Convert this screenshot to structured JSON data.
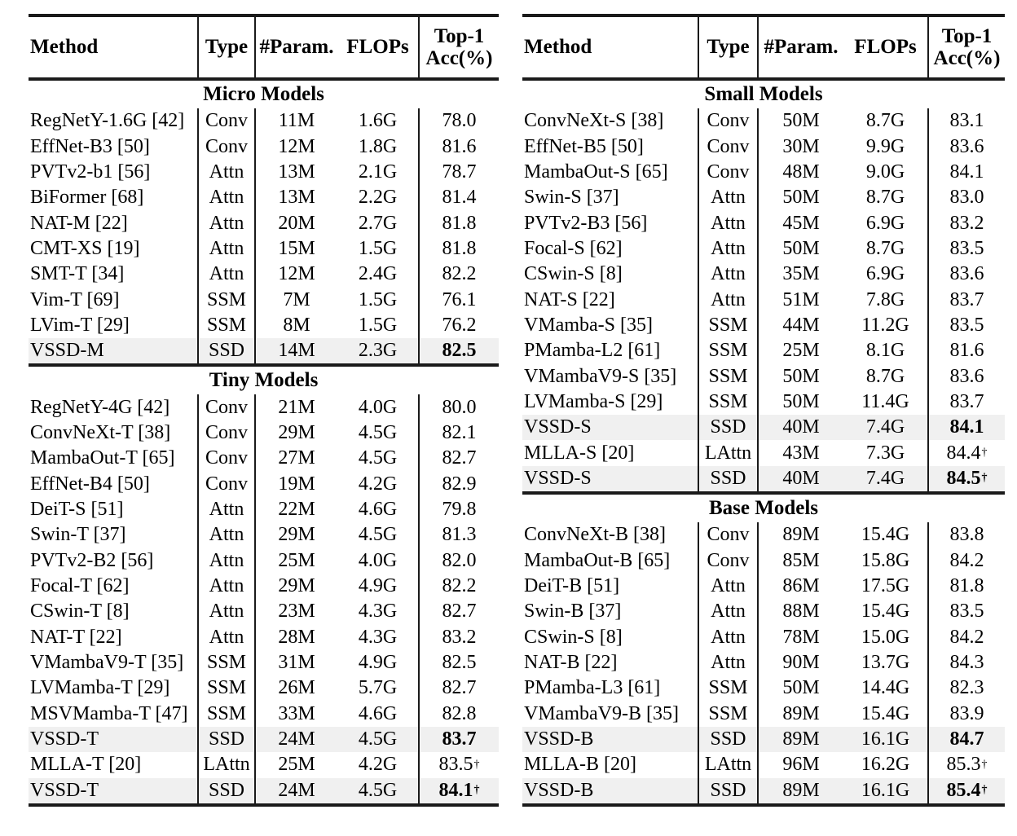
{
  "colors": {
    "text": "#000000",
    "rule": "#1a1a1a",
    "row_highlight": "#f0f0f0",
    "background": "#ffffff"
  },
  "header": {
    "method": "Method",
    "type": "Type",
    "param": "#Param.",
    "flops": "FLOPs",
    "acc_line1": "Top-1",
    "acc_line2": "Acc(%)",
    "dagger_symbol": "†"
  },
  "tables": [
    {
      "name": "left-table",
      "sections": [
        {
          "title": "Micro Models",
          "rows": [
            {
              "method": "RegNetY-1.6G [42]",
              "type": "Conv",
              "params": "11M",
              "flops": "1.6G",
              "acc": "78.0",
              "hl": false,
              "bold": false,
              "dagger": false
            },
            {
              "method": "EffNet-B3 [50]",
              "type": "Conv",
              "params": "12M",
              "flops": "1.8G",
              "acc": "81.6",
              "hl": false,
              "bold": false,
              "dagger": false
            },
            {
              "method": "PVTv2-b1 [56]",
              "type": "Attn",
              "params": "13M",
              "flops": "2.1G",
              "acc": "78.7",
              "hl": false,
              "bold": false,
              "dagger": false
            },
            {
              "method": "BiFormer [68]",
              "type": "Attn",
              "params": "13M",
              "flops": "2.2G",
              "acc": "81.4",
              "hl": false,
              "bold": false,
              "dagger": false
            },
            {
              "method": "NAT-M [22]",
              "type": "Attn",
              "params": "20M",
              "flops": "2.7G",
              "acc": "81.8",
              "hl": false,
              "bold": false,
              "dagger": false
            },
            {
              "method": "CMT-XS [19]",
              "type": "Attn",
              "params": "15M",
              "flops": "1.5G",
              "acc": "81.8",
              "hl": false,
              "bold": false,
              "dagger": false
            },
            {
              "method": "SMT-T [34]",
              "type": "Attn",
              "params": "12M",
              "flops": "2.4G",
              "acc": "82.2",
              "hl": false,
              "bold": false,
              "dagger": false
            },
            {
              "method": "Vim-T [69]",
              "type": "SSM",
              "params": "7M",
              "flops": "1.5G",
              "acc": "76.1",
              "hl": false,
              "bold": false,
              "dagger": false
            },
            {
              "method": "LVim-T [29]",
              "type": "SSM",
              "params": "8M",
              "flops": "1.5G",
              "acc": "76.2",
              "hl": false,
              "bold": false,
              "dagger": false
            },
            {
              "method": "VSSD-M",
              "type": "SSD",
              "params": "14M",
              "flops": "2.3G",
              "acc": "82.5",
              "hl": true,
              "bold": true,
              "dagger": false
            }
          ]
        },
        {
          "title": "Tiny Models",
          "rows": [
            {
              "method": "RegNetY-4G [42]",
              "type": "Conv",
              "params": "21M",
              "flops": "4.0G",
              "acc": "80.0",
              "hl": false,
              "bold": false,
              "dagger": false
            },
            {
              "method": "ConvNeXt-T [38]",
              "type": "Conv",
              "params": "29M",
              "flops": "4.5G",
              "acc": "82.1",
              "hl": false,
              "bold": false,
              "dagger": false
            },
            {
              "method": "MambaOut-T [65]",
              "type": "Conv",
              "params": "27M",
              "flops": "4.5G",
              "acc": "82.7",
              "hl": false,
              "bold": false,
              "dagger": false
            },
            {
              "method": "EffNet-B4 [50]",
              "type": "Conv",
              "params": "19M",
              "flops": "4.2G",
              "acc": "82.9",
              "hl": false,
              "bold": false,
              "dagger": false
            },
            {
              "method": "DeiT-S [51]",
              "type": "Attn",
              "params": "22M",
              "flops": "4.6G",
              "acc": "79.8",
              "hl": false,
              "bold": false,
              "dagger": false
            },
            {
              "method": "Swin-T [37]",
              "type": "Attn",
              "params": "29M",
              "flops": "4.5G",
              "acc": "81.3",
              "hl": false,
              "bold": false,
              "dagger": false
            },
            {
              "method": "PVTv2-B2 [56]",
              "type": "Attn",
              "params": "25M",
              "flops": "4.0G",
              "acc": "82.0",
              "hl": false,
              "bold": false,
              "dagger": false
            },
            {
              "method": "Focal-T [62]",
              "type": "Attn",
              "params": "29M",
              "flops": "4.9G",
              "acc": "82.2",
              "hl": false,
              "bold": false,
              "dagger": false
            },
            {
              "method": "CSwin-T [8]",
              "type": "Attn",
              "params": "23M",
              "flops": "4.3G",
              "acc": "82.7",
              "hl": false,
              "bold": false,
              "dagger": false
            },
            {
              "method": "NAT-T [22]",
              "type": "Attn",
              "params": "28M",
              "flops": "4.3G",
              "acc": "83.2",
              "hl": false,
              "bold": false,
              "dagger": false
            },
            {
              "method": "VMambaV9-T [35]",
              "type": "SSM",
              "params": "31M",
              "flops": "4.9G",
              "acc": "82.5",
              "hl": false,
              "bold": false,
              "dagger": false
            },
            {
              "method": "LVMamba-T [29]",
              "type": "SSM",
              "params": "26M",
              "flops": "5.7G",
              "acc": "82.7",
              "hl": false,
              "bold": false,
              "dagger": false
            },
            {
              "method": "MSVMamba-T [47]",
              "type": "SSM",
              "params": "33M",
              "flops": "4.6G",
              "acc": "82.8",
              "hl": false,
              "bold": false,
              "dagger": false
            },
            {
              "method": "VSSD-T",
              "type": "SSD",
              "params": "24M",
              "flops": "4.5G",
              "acc": "83.7",
              "hl": true,
              "bold": true,
              "dagger": false
            },
            {
              "method": "MLLA-T [20]",
              "type": "LAttn",
              "params": "25M",
              "flops": "4.2G",
              "acc": "83.5",
              "hl": false,
              "bold": false,
              "dagger": true
            },
            {
              "method": "VSSD-T",
              "type": "SSD",
              "params": "24M",
              "flops": "4.5G",
              "acc": "84.1",
              "hl": true,
              "bold": true,
              "dagger": true
            }
          ]
        }
      ]
    },
    {
      "name": "right-table",
      "sections": [
        {
          "title": "Small Models",
          "rows": [
            {
              "method": "ConvNeXt-S [38]",
              "type": "Conv",
              "params": "50M",
              "flops": "8.7G",
              "acc": "83.1",
              "hl": false,
              "bold": false,
              "dagger": false
            },
            {
              "method": "EffNet-B5 [50]",
              "type": "Conv",
              "params": "30M",
              "flops": "9.9G",
              "acc": "83.6",
              "hl": false,
              "bold": false,
              "dagger": false
            },
            {
              "method": "MambaOut-S [65]",
              "type": "Conv",
              "params": "48M",
              "flops": "9.0G",
              "acc": "84.1",
              "hl": false,
              "bold": false,
              "dagger": false
            },
            {
              "method": "Swin-S [37]",
              "type": "Attn",
              "params": "50M",
              "flops": "8.7G",
              "acc": "83.0",
              "hl": false,
              "bold": false,
              "dagger": false
            },
            {
              "method": "PVTv2-B3 [56]",
              "type": "Attn",
              "params": "45M",
              "flops": "6.9G",
              "acc": "83.2",
              "hl": false,
              "bold": false,
              "dagger": false
            },
            {
              "method": "Focal-S [62]",
              "type": "Attn",
              "params": "50M",
              "flops": "8.7G",
              "acc": "83.5",
              "hl": false,
              "bold": false,
              "dagger": false
            },
            {
              "method": "CSwin-S [8]",
              "type": "Attn",
              "params": "35M",
              "flops": "6.9G",
              "acc": "83.6",
              "hl": false,
              "bold": false,
              "dagger": false
            },
            {
              "method": "NAT-S [22]",
              "type": "Attn",
              "params": "51M",
              "flops": "7.8G",
              "acc": "83.7",
              "hl": false,
              "bold": false,
              "dagger": false
            },
            {
              "method": "VMamba-S [35]",
              "type": "SSM",
              "params": "44M",
              "flops": "11.2G",
              "acc": "83.5",
              "hl": false,
              "bold": false,
              "dagger": false
            },
            {
              "method": "PMamba-L2 [61]",
              "type": "SSM",
              "params": "25M",
              "flops": "8.1G",
              "acc": "81.6",
              "hl": false,
              "bold": false,
              "dagger": false
            },
            {
              "method": "VMambaV9-S [35]",
              "type": "SSM",
              "params": "50M",
              "flops": "8.7G",
              "acc": "83.6",
              "hl": false,
              "bold": false,
              "dagger": false
            },
            {
              "method": "LVMamba-S [29]",
              "type": "SSM",
              "params": "50M",
              "flops": "11.4G",
              "acc": "83.7",
              "hl": false,
              "bold": false,
              "dagger": false
            },
            {
              "method": "VSSD-S",
              "type": "SSD",
              "params": "40M",
              "flops": "7.4G",
              "acc": "84.1",
              "hl": true,
              "bold": true,
              "dagger": false
            },
            {
              "method": "MLLA-S [20]",
              "type": "LAttn",
              "params": "43M",
              "flops": "7.3G",
              "acc": "84.4",
              "hl": false,
              "bold": false,
              "dagger": true
            },
            {
              "method": "VSSD-S",
              "type": "SSD",
              "params": "40M",
              "flops": "7.4G",
              "acc": "84.5",
              "hl": true,
              "bold": true,
              "dagger": true
            }
          ]
        },
        {
          "title": "Base Models",
          "rows": [
            {
              "method": "ConvNeXt-B [38]",
              "type": "Conv",
              "params": "89M",
              "flops": "15.4G",
              "acc": "83.8",
              "hl": false,
              "bold": false,
              "dagger": false
            },
            {
              "method": "MambaOut-B [65]",
              "type": "Conv",
              "params": "85M",
              "flops": "15.8G",
              "acc": "84.2",
              "hl": false,
              "bold": false,
              "dagger": false
            },
            {
              "method": "DeiT-B [51]",
              "type": "Attn",
              "params": "86M",
              "flops": "17.5G",
              "acc": "81.8",
              "hl": false,
              "bold": false,
              "dagger": false
            },
            {
              "method": "Swin-B [37]",
              "type": "Attn",
              "params": "88M",
              "flops": "15.4G",
              "acc": "83.5",
              "hl": false,
              "bold": false,
              "dagger": false
            },
            {
              "method": "CSwin-S [8]",
              "type": "Attn",
              "params": "78M",
              "flops": "15.0G",
              "acc": "84.2",
              "hl": false,
              "bold": false,
              "dagger": false
            },
            {
              "method": "NAT-B [22]",
              "type": "Attn",
              "params": "90M",
              "flops": "13.7G",
              "acc": "84.3",
              "hl": false,
              "bold": false,
              "dagger": false
            },
            {
              "method": "PMamba-L3 [61]",
              "type": "SSM",
              "params": "50M",
              "flops": "14.4G",
              "acc": "82.3",
              "hl": false,
              "bold": false,
              "dagger": false
            },
            {
              "method": "VMambaV9-B [35]",
              "type": "SSM",
              "params": "89M",
              "flops": "15.4G",
              "acc": "83.9",
              "hl": false,
              "bold": false,
              "dagger": false
            },
            {
              "method": "VSSD-B",
              "type": "SSD",
              "params": "89M",
              "flops": "16.1G",
              "acc": "84.7",
              "hl": true,
              "bold": true,
              "dagger": false
            },
            {
              "method": "MLLA-B [20]",
              "type": "LAttn",
              "params": "96M",
              "flops": "16.2G",
              "acc": "85.3",
              "hl": false,
              "bold": false,
              "dagger": true
            },
            {
              "method": "VSSD-B",
              "type": "SSD",
              "params": "89M",
              "flops": "16.1G",
              "acc": "85.4",
              "hl": true,
              "bold": true,
              "dagger": true
            }
          ]
        }
      ]
    }
  ]
}
